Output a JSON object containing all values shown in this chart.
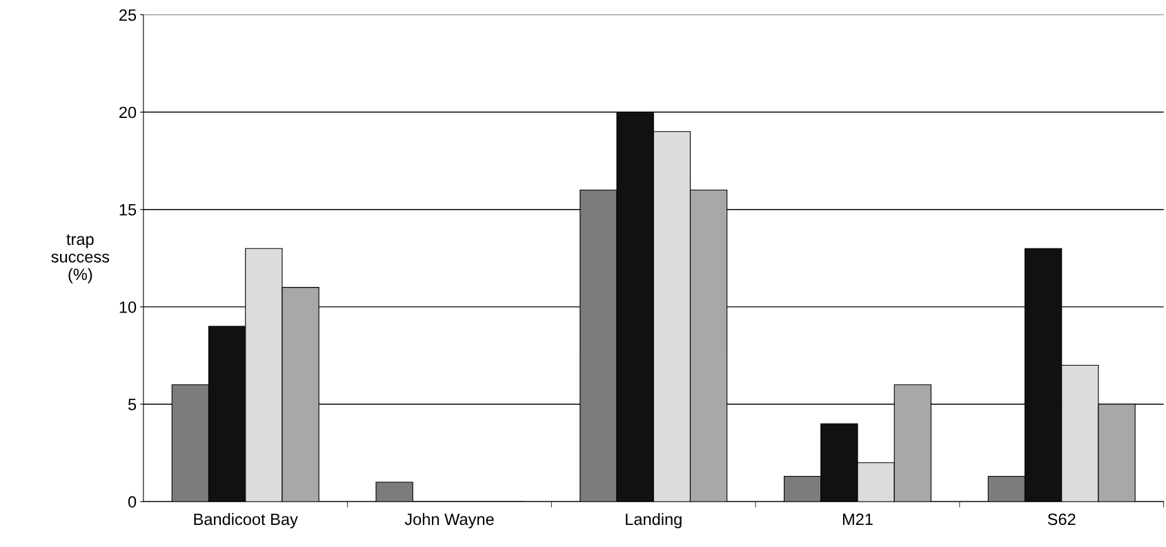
{
  "chart_data": {
    "type": "bar",
    "ylabel": "trap\nsuccess\n(%)",
    "categories": [
      "Bandicoot Bay",
      "John Wayne",
      "Landing",
      "M21",
      "S62"
    ],
    "series": [
      {
        "color": "#7c7c7c",
        "values": [
          6,
          1,
          16,
          1.3,
          1.3
        ]
      },
      {
        "color": "#111111",
        "values": [
          9,
          0,
          20,
          4,
          13
        ]
      },
      {
        "color": "#dcdcdc",
        "values": [
          13,
          0,
          19,
          2,
          7
        ]
      },
      {
        "color": "#a8a8a8",
        "values": [
          11,
          0,
          16,
          6,
          5
        ]
      }
    ],
    "ylim": [
      0,
      25
    ],
    "yticks": [
      0,
      5,
      10,
      15,
      20,
      25
    ],
    "grid": "y"
  }
}
